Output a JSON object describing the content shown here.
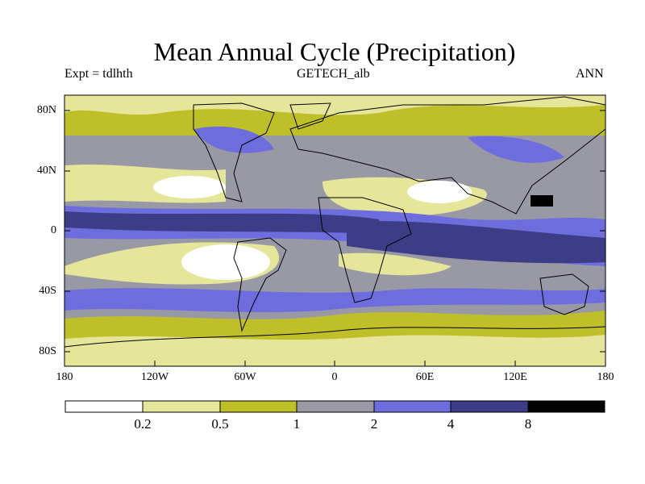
{
  "title": "Mean Annual Cycle (Precipitation)",
  "experiment": "Expt = tdlhth",
  "dataset": "GETECH_alb",
  "season": "ANN",
  "lat_ticks": [
    "80N",
    "40N",
    "0",
    "40S",
    "80S"
  ],
  "lon_ticks": [
    "180",
    "120W",
    "60W",
    "0",
    "60E",
    "120E",
    "180"
  ],
  "colorbar": {
    "boundaries": [
      "0.2",
      "0.5",
      "1",
      "2",
      "4",
      "8"
    ],
    "colors": [
      "#ffffff",
      "#e6e69a",
      "#bfbf2a",
      "#9999a6",
      "#6d6ddd",
      "#3d3d87",
      "#000000"
    ]
  },
  "land_color": "#000000"
}
